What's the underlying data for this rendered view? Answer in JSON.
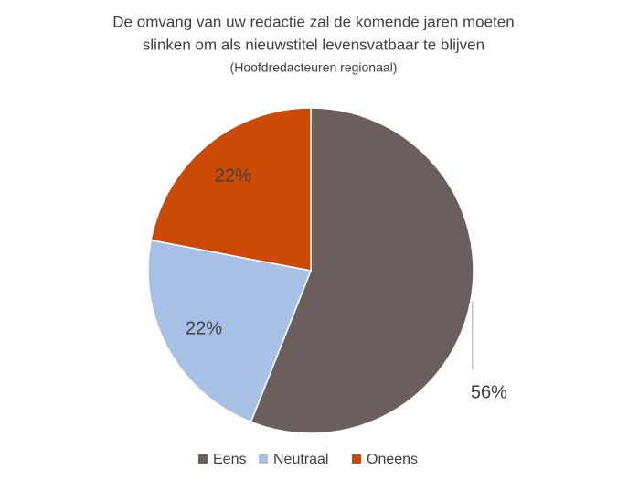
{
  "chart_data": {
    "type": "pie",
    "title": [
      "De omvang van uw redactie zal de komende jaren moeten",
      "slinken om als nieuwstitel levensvatbaar te blijven"
    ],
    "subtitle": "(Hoofdredacteuren regionaal)",
    "categories": [
      "Eens",
      "Neutraal",
      "Oneens"
    ],
    "values": [
      56,
      22,
      22
    ],
    "value_labels": [
      "56%",
      "22%",
      "22%"
    ],
    "colors": [
      "#6b5f5e",
      "#a9c0e6",
      "#cc4a05"
    ],
    "legend": "bottom"
  }
}
